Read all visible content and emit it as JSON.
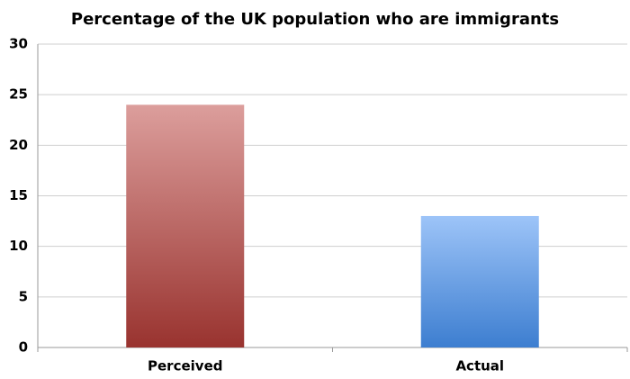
{
  "chart_data": {
    "type": "bar",
    "title": "Percentage of the UK population who are immigrants",
    "categories": [
      "Perceived",
      "Actual"
    ],
    "values": [
      24,
      13
    ],
    "colors": [
      [
        "#dc9e9c",
        "#99332f"
      ],
      [
        "#9dc4f8",
        "#3d7ed0"
      ]
    ],
    "ylim": [
      0,
      30
    ],
    "yticks": [
      0,
      5,
      10,
      15,
      20,
      25,
      30
    ],
    "grid": true
  }
}
